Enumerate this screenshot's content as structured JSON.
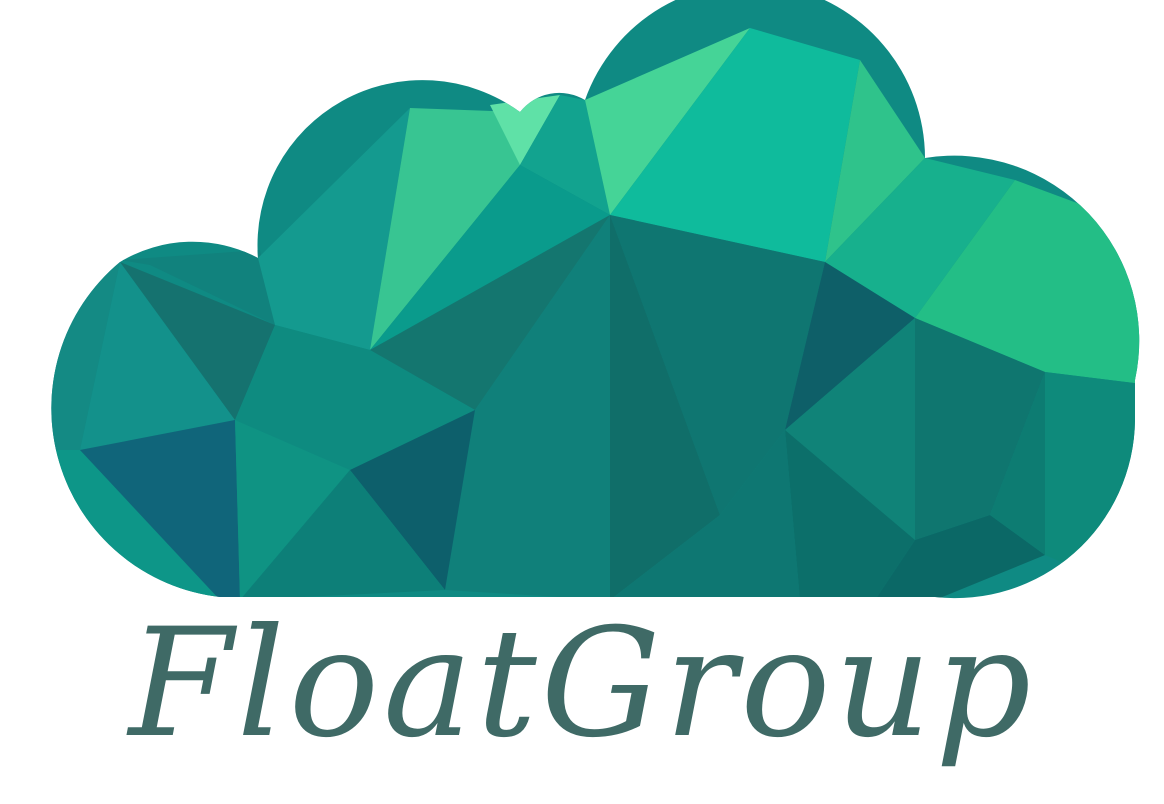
{
  "logo": {
    "brand_name": "FloatGroup",
    "icon": "low-poly-cloud-icon",
    "colors": {
      "wordmark": "#3f6a66",
      "cloud_light": "#45d497",
      "cloud_mid": "#13a08f",
      "cloud_dark": "#0e5f68"
    }
  }
}
